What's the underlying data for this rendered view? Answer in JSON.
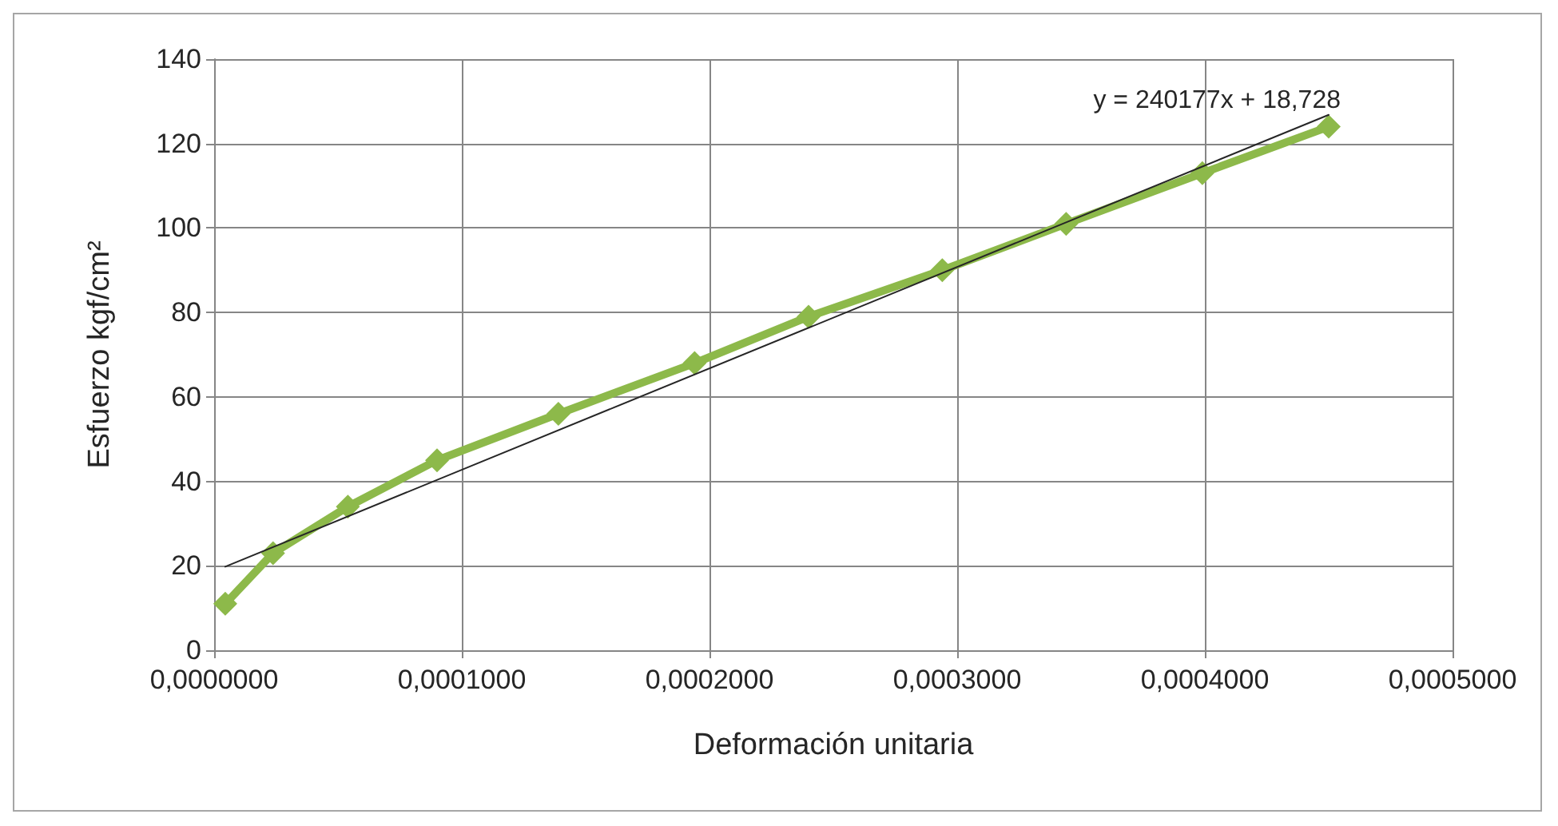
{
  "chart_data": {
    "type": "line",
    "xlabel": "Deformación unitaria",
    "ylabel": "Esfuerzo kgf/cm²",
    "x": [
      4.5e-06,
      2.38e-05,
      5.4e-05,
      9e-05,
      0.000139,
      0.000194,
      0.00024,
      0.000294,
      0.000344,
      0.000399,
      0.00045
    ],
    "series": [
      {
        "color": "#8db94a",
        "values": [
          11,
          23,
          34,
          45,
          56,
          68,
          79,
          90,
          101,
          113,
          124
        ],
        "marker": "diamond"
      },
      {
        "type": "line",
        "color": "#262626",
        "x": [
          4.5e-06,
          0.00045
        ],
        "values": [
          19.8,
          126.8
        ],
        "marker": "none"
      }
    ],
    "xlim": [
      0,
      0.0005
    ],
    "xticks": [
      {
        "value": 0,
        "label": "0,0000000"
      },
      {
        "value": 0.0001,
        "label": "0,0001000"
      },
      {
        "value": 0.0002,
        "label": "0,0002000"
      },
      {
        "value": 0.0003,
        "label": "0,0003000"
      },
      {
        "value": 0.0004,
        "label": "0,0004000"
      },
      {
        "value": 0.0005,
        "label": "0,0005000"
      }
    ],
    "ylim": [
      0,
      140
    ],
    "yticks": [
      0,
      20,
      40,
      60,
      80,
      100,
      120,
      140
    ],
    "grid": true,
    "annotations": [
      "y = 240177x + 18,728"
    ]
  }
}
